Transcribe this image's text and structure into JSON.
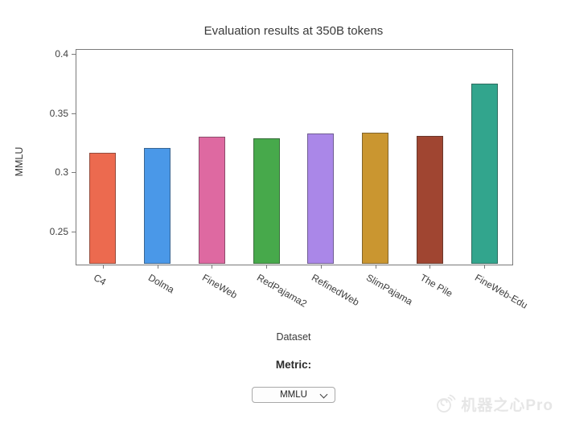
{
  "chart_data": {
    "type": "bar",
    "title": "Evaluation results at 350B tokens",
    "xlabel": "Dataset",
    "ylabel": "MMLU",
    "categories": [
      "C4",
      "Dolma",
      "FineWeb",
      "RedPajama2",
      "RefinedWeb",
      "SlimPajama",
      "The Pile",
      "FineWeb-Edu"
    ],
    "values": [
      0.317,
      0.321,
      0.33,
      0.329,
      0.333,
      0.334,
      0.331,
      0.375
    ],
    "colors": [
      "#ec6a4f",
      "#4a98e8",
      "#de69a1",
      "#47a94b",
      "#aa87e8",
      "#ca9630",
      "#a04531",
      "#32a58d"
    ],
    "bar_edge_color": "rgba(40,40,40,0.45)",
    "ylim": [
      0.2228,
      0.4044
    ],
    "yticks": [
      0.25,
      0.3,
      0.35,
      0.4
    ],
    "ytick_labels": [
      "0.25",
      "0.3",
      "0.35",
      "0.4"
    ],
    "xtick_rotation_deg": 30,
    "grid": false,
    "legend": "none"
  },
  "controls": {
    "metric_label": "Metric:",
    "dropdown": {
      "value": "MMLU"
    }
  },
  "watermark": {
    "text": "机器之心Pro",
    "color": "#e6e6e6"
  }
}
